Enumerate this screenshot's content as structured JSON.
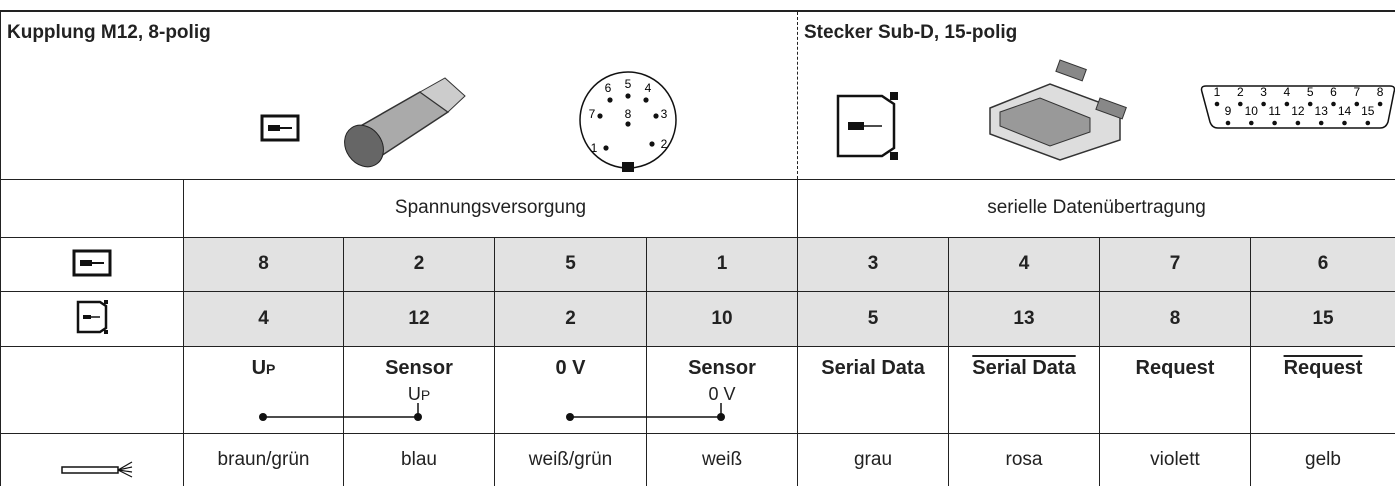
{
  "header": {
    "left_title": "Kupplung M12, 8-polig",
    "right_title": "Stecker Sub-D, 15-polig",
    "m12_pins": [
      "1",
      "2",
      "3",
      "4",
      "5",
      "6",
      "7",
      "8"
    ],
    "subd_pins": [
      "1",
      "2",
      "3",
      "4",
      "5",
      "6",
      "7",
      "8",
      "9",
      "10",
      "11",
      "12",
      "13",
      "14",
      "15"
    ]
  },
  "table": {
    "groups": [
      "Spannungsversorgung",
      "serielle Datenübertragung"
    ],
    "pins_m12": [
      8,
      2,
      5,
      1,
      3,
      4,
      7,
      6
    ],
    "pins_subd": [
      4,
      12,
      2,
      10,
      5,
      13,
      8,
      15
    ],
    "signals": [
      {
        "name": "U",
        "index": "P"
      },
      {
        "name": "Sensor",
        "detail": "U",
        "detail_index": "P"
      },
      {
        "name": "0 V"
      },
      {
        "name": "Sensor",
        "detail": "0 V"
      },
      {
        "name": "Serial Data"
      },
      {
        "name": "Serial Data",
        "overline": true
      },
      {
        "name": "Request"
      },
      {
        "name": "Request",
        "overline": true
      }
    ],
    "wire_colors": [
      "braun/grün",
      "blau",
      "weiß/grün",
      "weiß",
      "grau",
      "rosa",
      "violett",
      "gelb"
    ]
  }
}
